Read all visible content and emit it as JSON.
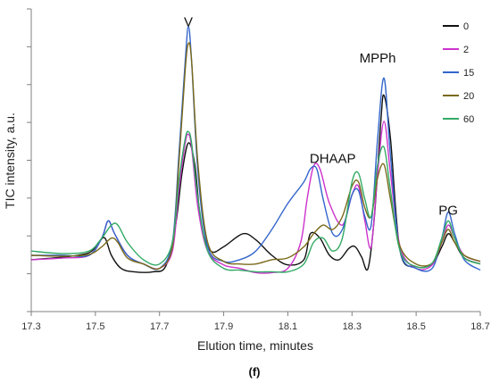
{
  "chart_data": {
    "type": "line",
    "xlabel": "Elution time, minutes",
    "ylabel": "TIC intensity, a.u.",
    "caption": "(f)",
    "xlim": [
      17.3,
      18.7
    ],
    "x_ticks": [
      "17.3",
      "17.5",
      "17.7",
      "17.9",
      "18.1",
      "18.3",
      "18.5",
      "18.7"
    ],
    "ylim": [
      -2,
      33
    ],
    "y_ticks_count": 9,
    "grid": false,
    "legend_position": "top-right",
    "annotations": [
      {
        "text": "V",
        "x": 17.79,
        "y": 31.0
      },
      {
        "text": "DHAAP",
        "x": 18.24,
        "y": 15.2
      },
      {
        "text": "MPPh",
        "x": 18.38,
        "y": 26.8
      },
      {
        "text": "PG",
        "x": 18.6,
        "y": 9.2
      }
    ],
    "series": [
      {
        "name": "0",
        "color": "#111111",
        "x": [
          17.3,
          17.4,
          17.48,
          17.51,
          17.53,
          17.55,
          17.58,
          17.62,
          17.68,
          17.72,
          17.75,
          17.77,
          17.79,
          17.81,
          17.83,
          17.86,
          17.9,
          17.96,
          18.0,
          18.05,
          18.1,
          18.15,
          18.17,
          18.2,
          18.23,
          18.26,
          18.29,
          18.31,
          18.33,
          18.35,
          18.37,
          18.39,
          18.4,
          18.42,
          18.45,
          18.5,
          18.55,
          18.58,
          18.6,
          18.62,
          18.65,
          18.7
        ],
        "y": [
          4.0,
          4.3,
          4.8,
          6.0,
          6.5,
          4.5,
          3.0,
          2.6,
          2.6,
          3.3,
          8.0,
          14.0,
          17.5,
          15.0,
          8.0,
          5.0,
          5.5,
          7.0,
          6.3,
          4.5,
          3.4,
          4.0,
          7.0,
          6.5,
          4.5,
          4.0,
          5.3,
          5.5,
          4.3,
          3.0,
          9.0,
          20.0,
          23.0,
          18.0,
          5.0,
          3.2,
          3.5,
          5.5,
          7.0,
          6.0,
          4.2,
          3.5
        ]
      },
      {
        "name": "2",
        "color": "#cc33cc",
        "x": [
          17.3,
          17.4,
          17.48,
          17.52,
          17.54,
          17.56,
          17.6,
          17.65,
          17.7,
          17.74,
          17.76,
          17.78,
          17.79,
          17.8,
          17.82,
          17.85,
          17.9,
          17.95,
          18.0,
          18.05,
          18.1,
          18.14,
          18.16,
          18.18,
          18.2,
          18.23,
          18.27,
          18.3,
          18.32,
          18.34,
          18.36,
          18.38,
          18.4,
          18.42,
          18.45,
          18.5,
          18.55,
          18.58,
          18.6,
          18.62,
          18.65,
          18.7
        ],
        "y": [
          4.0,
          4.2,
          4.5,
          6.5,
          8.5,
          7.0,
          4.5,
          3.5,
          3.0,
          5.0,
          12.0,
          17.5,
          18.5,
          17.0,
          10.0,
          5.0,
          3.4,
          3.0,
          2.5,
          2.5,
          3.0,
          6.0,
          11.0,
          14.8,
          14.5,
          10.5,
          8.0,
          11.5,
          12.5,
          8.5,
          5.5,
          14.0,
          20.0,
          14.0,
          5.5,
          3.0,
          3.4,
          6.0,
          8.0,
          6.5,
          4.5,
          3.8
        ]
      },
      {
        "name": "15",
        "color": "#3366cc",
        "x": [
          17.3,
          17.4,
          17.48,
          17.52,
          17.54,
          17.56,
          17.6,
          17.65,
          17.7,
          17.74,
          17.76,
          17.78,
          17.79,
          17.8,
          17.82,
          17.85,
          17.9,
          17.95,
          18.0,
          18.05,
          18.1,
          18.15,
          18.17,
          18.19,
          18.21,
          18.24,
          18.27,
          18.3,
          18.32,
          18.34,
          18.36,
          18.38,
          18.4,
          18.42,
          18.45,
          18.5,
          18.55,
          18.58,
          18.6,
          18.62,
          18.65,
          18.7
        ],
        "y": [
          4.5,
          4.5,
          4.5,
          6.5,
          8.5,
          7.0,
          4.5,
          3.5,
          3.0,
          6.0,
          16.0,
          27.0,
          31.0,
          27.0,
          14.0,
          5.5,
          3.8,
          4.0,
          5.0,
          7.5,
          10.5,
          13.0,
          14.5,
          14.5,
          11.0,
          7.0,
          7.5,
          11.5,
          12.0,
          9.0,
          8.0,
          18.0,
          25.0,
          16.0,
          5.0,
          3.0,
          3.0,
          6.5,
          9.5,
          7.0,
          4.0,
          2.8
        ]
      },
      {
        "name": "20",
        "color": "#7a6a1a",
        "x": [
          17.3,
          17.4,
          17.48,
          17.52,
          17.55,
          17.57,
          17.6,
          17.65,
          17.7,
          17.74,
          17.76,
          17.78,
          17.79,
          17.8,
          17.82,
          17.85,
          17.9,
          17.95,
          18.0,
          18.05,
          18.1,
          18.15,
          18.18,
          18.21,
          18.24,
          18.27,
          18.3,
          18.32,
          18.34,
          18.36,
          18.38,
          18.4,
          18.42,
          18.45,
          18.5,
          18.55,
          18.58,
          18.6,
          18.62,
          18.65,
          18.7
        ],
        "y": [
          4.5,
          4.4,
          4.6,
          5.5,
          6.5,
          6.0,
          4.2,
          3.5,
          3.0,
          5.5,
          15.0,
          26.0,
          29.0,
          27.0,
          15.0,
          6.0,
          3.8,
          3.5,
          3.5,
          4.0,
          4.2,
          5.5,
          7.0,
          8.0,
          7.5,
          9.0,
          12.5,
          13.0,
          10.0,
          9.0,
          13.5,
          15.0,
          11.0,
          5.5,
          3.5,
          3.6,
          6.0,
          7.5,
          6.0,
          4.5,
          3.8
        ]
      },
      {
        "name": "60",
        "color": "#33aa66",
        "x": [
          17.3,
          17.4,
          17.48,
          17.52,
          17.55,
          17.57,
          17.6,
          17.65,
          17.7,
          17.74,
          17.76,
          17.78,
          17.79,
          17.8,
          17.82,
          17.85,
          17.9,
          17.95,
          18.0,
          18.05,
          18.1,
          18.15,
          18.18,
          18.21,
          18.24,
          18.27,
          18.3,
          18.32,
          18.34,
          18.36,
          18.38,
          18.4,
          18.42,
          18.45,
          18.5,
          18.55,
          18.58,
          18.6,
          18.62,
          18.65,
          18.7
        ],
        "y": [
          5.0,
          4.7,
          5.0,
          6.5,
          8.0,
          8.0,
          6.0,
          4.0,
          3.5,
          6.0,
          13.0,
          18.0,
          18.8,
          17.5,
          11.0,
          5.0,
          3.0,
          2.8,
          2.6,
          2.6,
          2.6,
          3.5,
          6.0,
          6.5,
          5.0,
          6.5,
          13.0,
          14.0,
          11.0,
          9.0,
          15.0,
          17.0,
          12.0,
          5.0,
          3.2,
          3.6,
          6.5,
          8.5,
          6.5,
          4.2,
          3.5
        ]
      }
    ]
  }
}
